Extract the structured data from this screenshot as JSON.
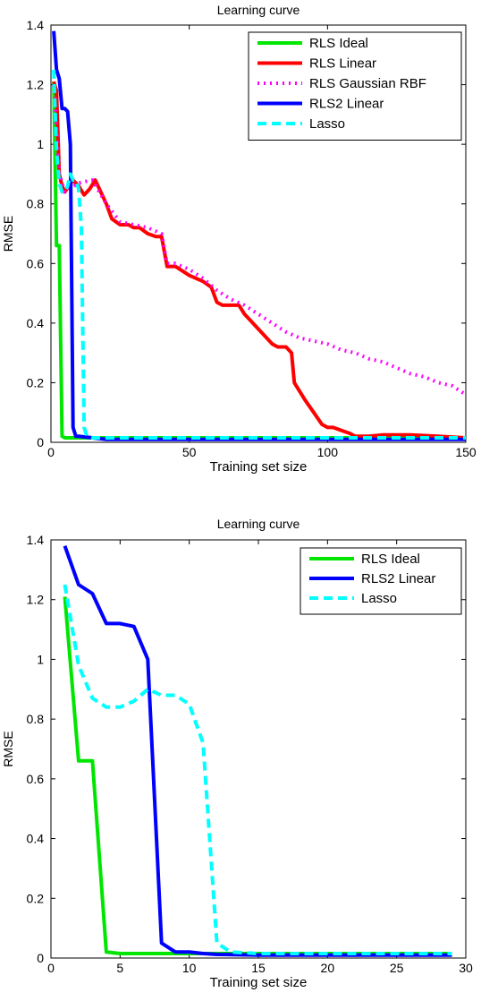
{
  "chart_data": [
    {
      "type": "line",
      "title": "Learning curve",
      "xlabel": "Training set size",
      "ylabel": "RMSE",
      "xlim": [
        0,
        150
      ],
      "ylim": [
        0,
        1.4
      ],
      "xticks": [
        "0",
        "50",
        "100",
        "150"
      ],
      "yticks": [
        "0",
        "0.2",
        "0.4",
        "0.6",
        "0.8",
        "1",
        "1.2",
        "1.4"
      ],
      "grid": false,
      "legend_position": "top-right",
      "series": [
        {
          "name": "RLS Ideal",
          "color": "#00e600",
          "dash": "solid",
          "x": [
            1,
            2,
            3,
            4,
            5,
            10,
            20,
            30,
            50,
            75,
            100,
            125,
            150
          ],
          "y": [
            1.21,
            0.66,
            0.66,
            0.02,
            0.015,
            0.015,
            0.015,
            0.015,
            0.015,
            0.015,
            0.015,
            0.015,
            0.015
          ]
        },
        {
          "name": "RLS Linear",
          "color": "#ff0000",
          "dash": "solid",
          "x": [
            1,
            2,
            3,
            4,
            5,
            8,
            10,
            12,
            14,
            16,
            18,
            20,
            22,
            25,
            28,
            30,
            32,
            35,
            38,
            40,
            42,
            45,
            50,
            55,
            58,
            60,
            62,
            65,
            68,
            70,
            72,
            75,
            78,
            80,
            82,
            85,
            87,
            88,
            90,
            92,
            95,
            98,
            100,
            102,
            105,
            108,
            110,
            115,
            120,
            130,
            140,
            150
          ],
          "y": [
            1.21,
            1.18,
            0.9,
            0.86,
            0.84,
            0.88,
            0.86,
            0.83,
            0.85,
            0.88,
            0.84,
            0.8,
            0.75,
            0.73,
            0.73,
            0.72,
            0.72,
            0.7,
            0.69,
            0.69,
            0.59,
            0.59,
            0.56,
            0.54,
            0.52,
            0.47,
            0.46,
            0.46,
            0.46,
            0.43,
            0.41,
            0.38,
            0.35,
            0.33,
            0.32,
            0.32,
            0.3,
            0.2,
            0.17,
            0.14,
            0.1,
            0.06,
            0.05,
            0.05,
            0.04,
            0.03,
            0.02,
            0.02,
            0.025,
            0.025,
            0.02,
            0.015
          ]
        },
        {
          "name": "RLS Gaussian RBF",
          "color": "#ff00ff",
          "dash": "dotted",
          "x": [
            1,
            3,
            5,
            10,
            15,
            20,
            25,
            30,
            35,
            40,
            42,
            45,
            50,
            55,
            60,
            65,
            70,
            75,
            80,
            85,
            90,
            95,
            100,
            105,
            110,
            115,
            120,
            125,
            130,
            135,
            140,
            145,
            150
          ],
          "y": [
            1.2,
            0.9,
            0.84,
            0.87,
            0.88,
            0.8,
            0.74,
            0.73,
            0.72,
            0.7,
            0.6,
            0.6,
            0.58,
            0.55,
            0.51,
            0.48,
            0.46,
            0.43,
            0.4,
            0.37,
            0.35,
            0.34,
            0.33,
            0.31,
            0.3,
            0.28,
            0.27,
            0.25,
            0.23,
            0.22,
            0.2,
            0.19,
            0.16
          ]
        },
        {
          "name": "RLS2 Linear",
          "color": "#0000ff",
          "dash": "solid",
          "x": [
            1,
            2,
            3,
            4,
            5,
            6,
            7,
            8,
            9,
            10,
            15,
            20,
            30,
            50,
            75,
            100,
            125,
            150
          ],
          "y": [
            1.38,
            1.25,
            1.22,
            1.12,
            1.12,
            1.11,
            1.0,
            0.05,
            0.02,
            0.02,
            0.015,
            0.01,
            0.01,
            0.01,
            0.01,
            0.01,
            0.01,
            0.01
          ]
        },
        {
          "name": "Lasso",
          "color": "#00ffff",
          "dash": "dashed",
          "x": [
            1,
            2,
            3,
            4,
            5,
            6,
            7,
            8,
            9,
            10,
            11,
            12,
            13,
            15,
            20,
            30,
            50,
            75,
            100,
            125,
            150
          ],
          "y": [
            1.25,
            0.98,
            0.87,
            0.84,
            0.84,
            0.86,
            0.9,
            0.88,
            0.88,
            0.85,
            0.72,
            0.05,
            0.02,
            0.015,
            0.015,
            0.015,
            0.015,
            0.015,
            0.015,
            0.015,
            0.015
          ]
        }
      ]
    },
    {
      "type": "line",
      "title": "Learning curve",
      "xlabel": "Training set size",
      "ylabel": "RMSE",
      "xlim": [
        0,
        30
      ],
      "ylim": [
        0,
        1.4
      ],
      "xticks": [
        "0",
        "5",
        "10",
        "15",
        "20",
        "25",
        "30"
      ],
      "yticks": [
        "0",
        "0.2",
        "0.4",
        "0.6",
        "0.8",
        "1",
        "1.2",
        "1.4"
      ],
      "grid": false,
      "legend_position": "top-right",
      "series": [
        {
          "name": "RLS Ideal",
          "color": "#00e600",
          "dash": "solid",
          "x": [
            1,
            2,
            3,
            4,
            5,
            10,
            15,
            20,
            25,
            29
          ],
          "y": [
            1.21,
            0.66,
            0.66,
            0.02,
            0.015,
            0.015,
            0.015,
            0.015,
            0.015,
            0.015
          ]
        },
        {
          "name": "RLS2 Linear",
          "color": "#0000ff",
          "dash": "solid",
          "x": [
            1,
            2,
            3,
            4,
            5,
            6,
            7,
            8,
            9,
            10,
            11,
            12,
            15,
            20,
            25,
            29
          ],
          "y": [
            1.38,
            1.25,
            1.22,
            1.12,
            1.12,
            1.11,
            1.0,
            0.05,
            0.02,
            0.02,
            0.015,
            0.012,
            0.01,
            0.01,
            0.01,
            0.01
          ]
        },
        {
          "name": "Lasso",
          "color": "#00ffff",
          "dash": "dashed",
          "x": [
            1,
            2,
            3,
            4,
            5,
            6,
            7,
            8,
            9,
            10,
            11,
            12,
            13,
            15,
            20,
            25,
            29
          ],
          "y": [
            1.25,
            0.98,
            0.87,
            0.84,
            0.84,
            0.86,
            0.9,
            0.88,
            0.88,
            0.85,
            0.72,
            0.05,
            0.02,
            0.015,
            0.015,
            0.015,
            0.015
          ]
        }
      ]
    }
  ]
}
